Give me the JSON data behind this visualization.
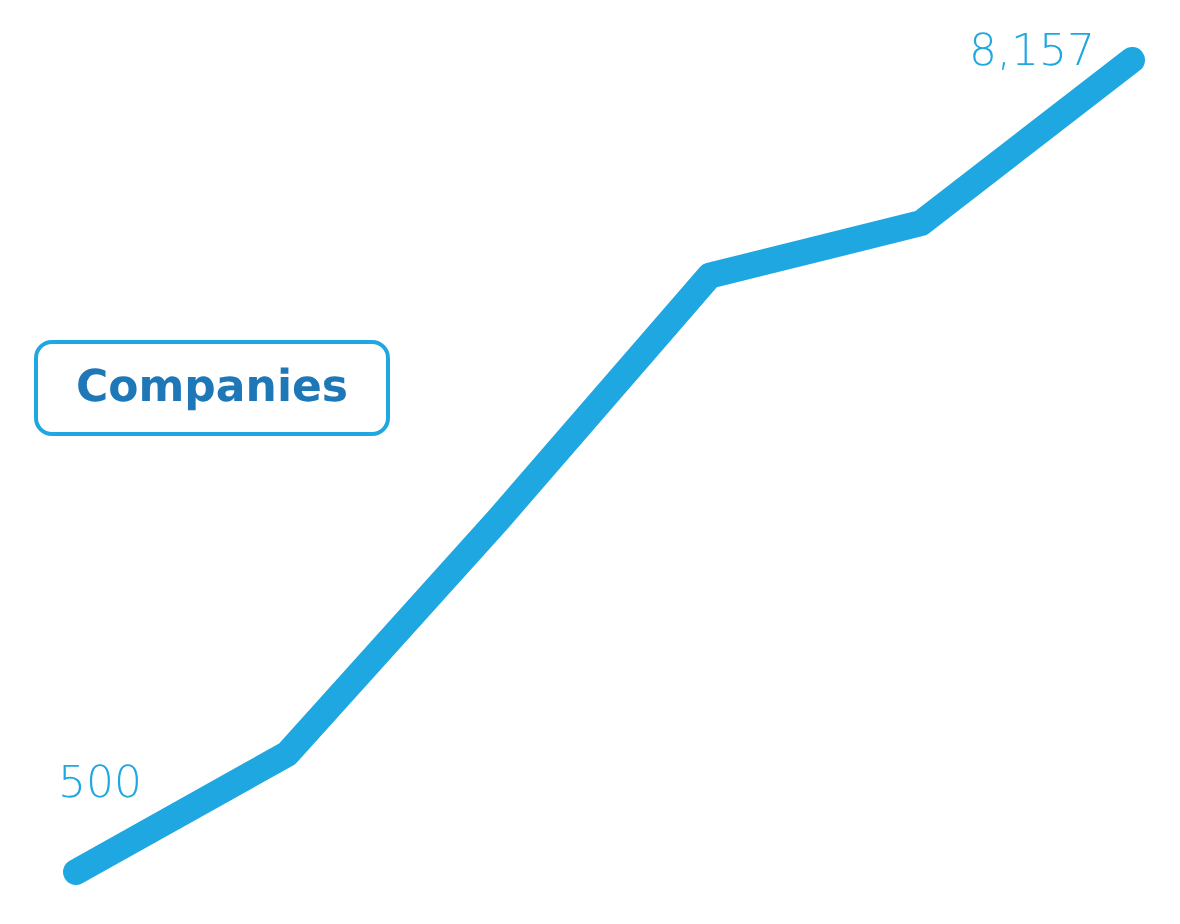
{
  "chart_data": {
    "type": "line",
    "title": "Companies",
    "categories": [
      null,
      null,
      null,
      null,
      null,
      null
    ],
    "series": [
      {
        "color": "#1ea7e1",
        "values": [
          500,
          1614,
          3824,
          6123,
          6618,
          8157
        ],
        "value_labels": [
          "500",
          null,
          null,
          null,
          null,
          "8,157"
        ]
      }
    ]
  }
}
